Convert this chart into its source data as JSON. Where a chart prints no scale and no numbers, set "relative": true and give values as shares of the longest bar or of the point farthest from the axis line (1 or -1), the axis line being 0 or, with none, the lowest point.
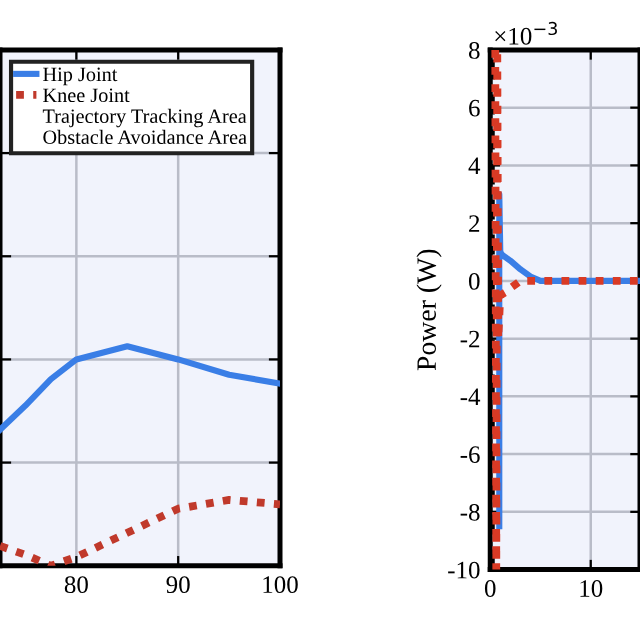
{
  "chart_data": [
    {
      "type": "line",
      "relative": true,
      "x": [
        72.5,
        75,
        77.5,
        80,
        85,
        90,
        95,
        100
      ],
      "xlim": [
        72.5,
        100
      ],
      "xticks": [
        80,
        90,
        100
      ],
      "tick_labels": "x",
      "grid": true,
      "legend": "top",
      "line_style": "solid",
      "series": [
        {
          "name": "Hip Joint",
          "color": "#3a7ee6",
          "values": [
            0.62,
            0.73,
            0.85,
            0.94,
            1.0,
            0.94,
            0.87,
            0.83
          ]
        },
        {
          "name": "Knee Joint",
          "color": "#c0392b",
          "line_style": "dotted",
          "values": [
            0.09,
            0.05,
            0.0,
            0.04,
            0.15,
            0.26,
            0.3,
            0.28
          ]
        }
      ],
      "annotations": [
        "Trajectory Tracking Area",
        "Obstacle Avoidance Area"
      ]
    },
    {
      "type": "line",
      "ylabel": "Power (W)",
      "xlim": [
        0,
        14.9
      ],
      "ylim": [
        -10,
        8
      ],
      "xticks": [
        0,
        10
      ],
      "yticks": [
        -10,
        -8,
        -6,
        -4,
        -2,
        0,
        2,
        4,
        6,
        8
      ],
      "grid": true,
      "line_style": "solid",
      "annotations": [
        "×10$^{−3}$"
      ],
      "ref_lines": [
        {
          "axis": "x",
          "value": 0.2,
          "color": "#000000",
          "line_style": "dashed"
        }
      ],
      "series": [
        {
          "color": "#3a7ee6",
          "x": [
            0.9,
            0.9,
            1.0,
            1.2,
            2,
            3,
            4,
            5,
            14.9
          ],
          "values": [
            -8.5,
            3,
            1,
            0.9,
            0.7,
            0.4,
            0.15,
            0,
            0
          ]
        },
        {
          "color": "#d93a25",
          "line_style": "dotted",
          "x": [
            0.5,
            0.6,
            0.7,
            0.8,
            1.0,
            1.5,
            2,
            3,
            14.9
          ],
          "values": [
            8,
            -10,
            8,
            -2,
            -0.5,
            -0.4,
            -0.25,
            0,
            0
          ]
        }
      ]
    }
  ]
}
